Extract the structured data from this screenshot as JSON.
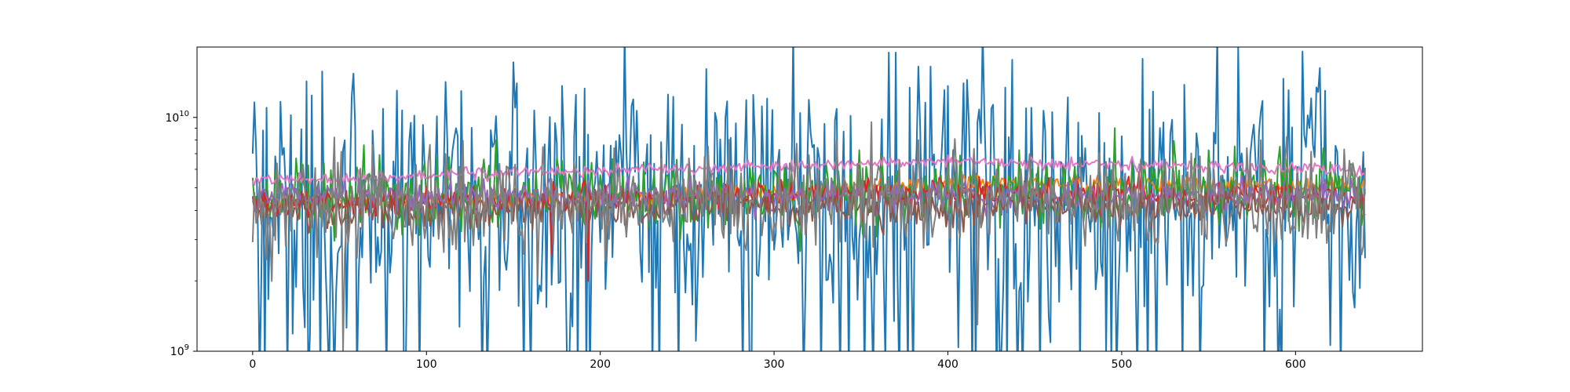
{
  "chart_data": {
    "type": "line",
    "title": "",
    "xlabel": "",
    "ylabel": "",
    "y_scale": "log",
    "xlim": [
      -32,
      673
    ],
    "ylim": [
      1000000000,
      20000000000
    ],
    "grid": false,
    "legend": "none",
    "x_ticks": [
      {
        "value": 0,
        "label": "0"
      },
      {
        "value": 100,
        "label": "100"
      },
      {
        "value": 200,
        "label": "200"
      },
      {
        "value": 300,
        "label": "300"
      },
      {
        "value": 400,
        "label": "400"
      },
      {
        "value": 500,
        "label": "500"
      },
      {
        "value": 600,
        "label": "600"
      }
    ],
    "y_ticks": [
      {
        "value": 1000000000,
        "base": "10",
        "exp": "9"
      },
      {
        "value": 10000000000,
        "base": "10",
        "exp": "10"
      }
    ],
    "x_points": 641,
    "series": [
      {
        "color": "#1f77b4",
        "base": 4600000000.0,
        "trend": [
          [
            0,
            0.0
          ],
          [
            640,
            0.0
          ]
        ],
        "noise": 0.55,
        "seed": 11,
        "anchors": [
          [
            0,
            7000000000.0
          ],
          [
            8,
            11000000000.0
          ],
          [
            152,
            14000000000.0
          ],
          [
            383,
            16500000000.0
          ],
          [
            617,
            13000000000.0
          ],
          [
            640,
            2500000000.0
          ]
        ]
      },
      {
        "color": "#ff7f0e",
        "base": 4400000000.0,
        "trend": [
          [
            0,
            0.0
          ],
          [
            250,
            0.02
          ],
          [
            400,
            0.07
          ],
          [
            640,
            0.06
          ]
        ],
        "noise": 0.04,
        "seed": 23,
        "anchors": []
      },
      {
        "color": "#2ca02c",
        "base": 4600000000.0,
        "trend": [
          [
            0,
            0.0
          ],
          [
            640,
            0.02
          ]
        ],
        "noise": 0.16,
        "seed": 37,
        "anchors": [
          [
            140,
            8000000000.0
          ],
          [
            496,
            9000000000.0
          ],
          [
            591,
            7500000000.0
          ]
        ]
      },
      {
        "color": "#d62728",
        "base": 4300000000.0,
        "trend": [
          [
            0,
            0.0
          ],
          [
            300,
            0.04
          ],
          [
            400,
            0.05
          ],
          [
            640,
            0.03
          ]
        ],
        "noise": 0.06,
        "seed": 41,
        "anchors": [
          [
            193,
            2000000000.0
          ],
          [
            172,
            2600000000.0
          ]
        ]
      },
      {
        "color": "#9467bd",
        "base": 4600000000.0,
        "trend": [
          [
            0,
            0.0
          ],
          [
            640,
            0.0
          ]
        ],
        "noise": 0.07,
        "seed": 53,
        "anchors": []
      },
      {
        "color": "#8c564b",
        "base": 4000000000.0,
        "trend": [
          [
            0,
            0.0
          ],
          [
            640,
            0.02
          ]
        ],
        "noise": 0.08,
        "seed": 59,
        "anchors": []
      },
      {
        "color": "#e377c2",
        "base": 5400000000.0,
        "trend": [
          [
            0,
            0.0
          ],
          [
            300,
            0.06
          ],
          [
            400,
            0.08
          ],
          [
            640,
            0.04
          ]
        ],
        "noise": 0.025,
        "seed": 67,
        "anchors": []
      },
      {
        "color": "#7f7f7f",
        "base": 4200000000.0,
        "trend": [
          [
            0,
            0.0
          ],
          [
            640,
            0.02
          ]
        ],
        "noise": 0.22,
        "seed": 71,
        "anchors": [
          [
            52,
            1000000000.0
          ],
          [
            262,
            7500000000.0
          ],
          [
            383,
            8000000000.0
          ],
          [
            417,
            1300000000.0
          ],
          [
            580,
            8000000000.0
          ]
        ]
      }
    ]
  }
}
